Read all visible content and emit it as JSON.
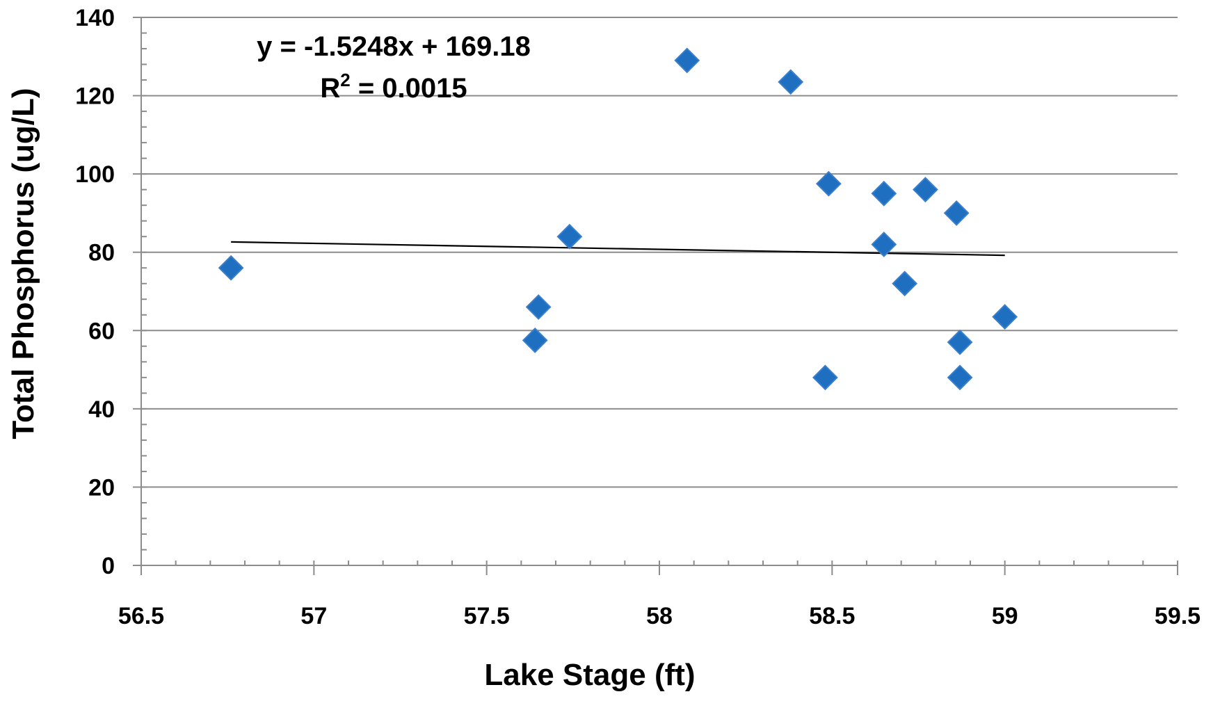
{
  "chart_data": {
    "type": "scatter",
    "title": "",
    "xlabel": "Lake Stage (ft)",
    "ylabel": "Total Phosphorus (ug/L)",
    "xlim": [
      56.5,
      59.5
    ],
    "ylim": [
      0,
      140
    ],
    "x_ticks": [
      56.5,
      57,
      57.5,
      58,
      58.5,
      59,
      59.5
    ],
    "x_tick_labels": [
      "56.5",
      "57",
      "57.5",
      "58",
      "58.5",
      "59",
      "59.5"
    ],
    "y_ticks": [
      0,
      20,
      40,
      60,
      80,
      100,
      120,
      140
    ],
    "y_tick_labels": [
      "0",
      "20",
      "40",
      "60",
      "80",
      "100",
      "120",
      "140"
    ],
    "grid": "horizontal major gridlines",
    "legend": "none",
    "marker": "diamond",
    "marker_color": "#1f6fc0",
    "points": [
      {
        "x": 56.76,
        "y": 76
      },
      {
        "x": 57.64,
        "y": 57.5
      },
      {
        "x": 57.65,
        "y": 66
      },
      {
        "x": 57.74,
        "y": 84
      },
      {
        "x": 58.08,
        "y": 129
      },
      {
        "x": 58.38,
        "y": 123.5
      },
      {
        "x": 58.48,
        "y": 48
      },
      {
        "x": 58.49,
        "y": 97.5
      },
      {
        "x": 58.65,
        "y": 95
      },
      {
        "x": 58.65,
        "y": 82
      },
      {
        "x": 58.71,
        "y": 72
      },
      {
        "x": 58.77,
        "y": 96
      },
      {
        "x": 58.86,
        "y": 90
      },
      {
        "x": 58.87,
        "y": 57
      },
      {
        "x": 58.87,
        "y": 48
      },
      {
        "x": 59.0,
        "y": 63.5
      }
    ],
    "trendline": {
      "slope": -1.5248,
      "intercept": 169.18,
      "x_range": [
        56.76,
        59.0
      ],
      "color": "#000000"
    },
    "annotations": {
      "equation": "y = -1.5248x + 169.18",
      "r2_prefix": "R",
      "r2_superscript": "2",
      "r2_value": " = 0.0015"
    }
  }
}
